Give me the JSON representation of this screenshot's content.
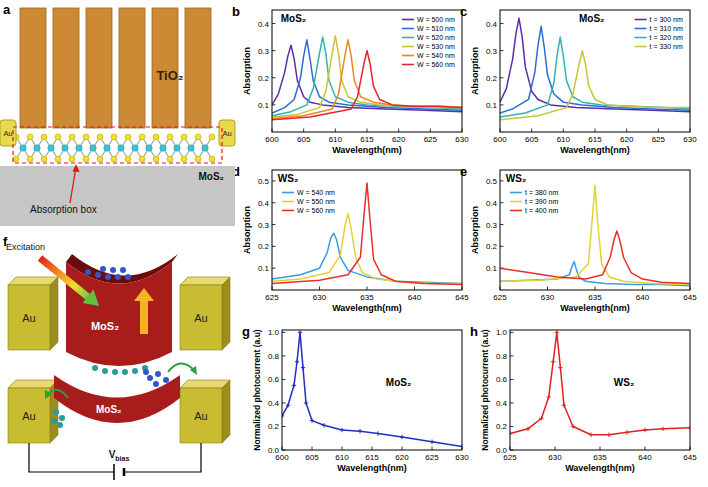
{
  "chart_data": [
    {
      "panel": "b",
      "type": "line",
      "title": "MoS₂",
      "x_label": "Wavelength(nm)",
      "y_label": "Absorption",
      "xlim": [
        600,
        630
      ],
      "xticks": [
        600,
        605,
        610,
        615,
        620,
        625,
        630
      ],
      "ylim": [
        0,
        0.45
      ],
      "yticks": [
        0.1,
        0.2,
        0.3,
        0.4
      ],
      "legend": "upper right",
      "series": [
        {
          "name": "W = 500 nm",
          "color": "#5b2ea6",
          "x": [
            600,
            601,
            602,
            602.5,
            603,
            603.5,
            604,
            605,
            606,
            608,
            612,
            618,
            624,
            630
          ],
          "values": [
            0.1,
            0.14,
            0.22,
            0.28,
            0.32,
            0.27,
            0.19,
            0.13,
            0.11,
            0.1,
            0.09,
            0.085,
            0.08,
            0.075
          ]
        },
        {
          "name": "W = 510 nm",
          "color": "#2b6cd6",
          "x": [
            600,
            602,
            603.5,
            604.5,
            605,
            605.5,
            606,
            606.5,
            607.5,
            609,
            612,
            618,
            624,
            630
          ],
          "values": [
            0.07,
            0.09,
            0.12,
            0.2,
            0.28,
            0.34,
            0.27,
            0.19,
            0.13,
            0.11,
            0.1,
            0.09,
            0.085,
            0.08
          ]
        },
        {
          "name": "W = 520 nm",
          "color": "#2fb4b0",
          "x": [
            600,
            603,
            605.5,
            606.5,
            607.5,
            608,
            608.5,
            609,
            610,
            612,
            615,
            620,
            625,
            630
          ],
          "values": [
            0.06,
            0.075,
            0.1,
            0.16,
            0.29,
            0.35,
            0.29,
            0.19,
            0.13,
            0.11,
            0.1,
            0.095,
            0.09,
            0.085
          ]
        },
        {
          "name": "W = 530 nm",
          "color": "#c7c436",
          "x": [
            600,
            604,
            607.5,
            608.5,
            609.5,
            610,
            610.5,
            611,
            612,
            614,
            617,
            622,
            626,
            630
          ],
          "values": [
            0.055,
            0.065,
            0.09,
            0.15,
            0.29,
            0.355,
            0.29,
            0.19,
            0.13,
            0.11,
            0.1,
            0.095,
            0.09,
            0.09
          ]
        },
        {
          "name": "W = 540 nm",
          "color": "#f0851e",
          "x": [
            600,
            605,
            609.5,
            610.5,
            611.5,
            612,
            612.5,
            613,
            614,
            616,
            619,
            623,
            627,
            630
          ],
          "values": [
            0.05,
            0.06,
            0.085,
            0.14,
            0.28,
            0.34,
            0.28,
            0.19,
            0.13,
            0.11,
            0.1,
            0.095,
            0.095,
            0.09
          ]
        },
        {
          "name": "W = 560 nm",
          "color": "#e4262b",
          "x": [
            600,
            606,
            612.5,
            613.5,
            614.5,
            615,
            615.5,
            616,
            617,
            619,
            622,
            626,
            630
          ],
          "values": [
            0.045,
            0.055,
            0.085,
            0.13,
            0.25,
            0.3,
            0.25,
            0.17,
            0.12,
            0.1,
            0.095,
            0.095,
            0.09
          ]
        }
      ]
    },
    {
      "panel": "c",
      "type": "line",
      "title": "MoS₂",
      "x_label": "Wavelength(nm)",
      "y_label": "Absorption",
      "xlim": [
        600,
        630
      ],
      "xticks": [
        600,
        605,
        610,
        615,
        620,
        625,
        630
      ],
      "ylim": [
        0,
        0.45
      ],
      "yticks": [
        0.1,
        0.2,
        0.3,
        0.4
      ],
      "legend": "upper right",
      "series": [
        {
          "name": "t = 300 nm",
          "color": "#5b2ea6",
          "x": [
            600,
            601,
            602,
            602.5,
            603,
            603.5,
            604,
            605,
            606,
            608,
            612,
            618,
            624,
            630
          ],
          "values": [
            0.11,
            0.16,
            0.27,
            0.36,
            0.42,
            0.35,
            0.24,
            0.15,
            0.12,
            0.1,
            0.09,
            0.085,
            0.08,
            0.075
          ]
        },
        {
          "name": "t = 310 nm",
          "color": "#2b6cd6",
          "x": [
            600,
            602,
            604.5,
            605.5,
            606,
            606.5,
            607,
            607.5,
            608.5,
            610,
            613,
            618,
            624,
            630
          ],
          "values": [
            0.07,
            0.085,
            0.12,
            0.22,
            0.32,
            0.39,
            0.31,
            0.21,
            0.14,
            0.11,
            0.1,
            0.09,
            0.085,
            0.08
          ]
        },
        {
          "name": "t = 320 nm",
          "color": "#2fb4b0",
          "x": [
            600,
            604,
            607.5,
            608.5,
            609,
            609.5,
            610,
            610.5,
            611.5,
            613,
            616,
            621,
            626,
            630
          ],
          "values": [
            0.055,
            0.07,
            0.1,
            0.18,
            0.28,
            0.35,
            0.28,
            0.19,
            0.13,
            0.11,
            0.1,
            0.095,
            0.09,
            0.085
          ]
        },
        {
          "name": "t = 330 nm",
          "color": "#c7c436",
          "x": [
            600,
            606,
            610.5,
            611.5,
            612.5,
            613,
            613.5,
            614,
            615,
            617,
            620,
            625,
            630
          ],
          "values": [
            0.045,
            0.06,
            0.09,
            0.14,
            0.25,
            0.3,
            0.25,
            0.17,
            0.12,
            0.1,
            0.095,
            0.09,
            0.09
          ]
        }
      ]
    },
    {
      "panel": "d",
      "type": "line",
      "title": "WS₂",
      "x_label": "Wavelength(nm)",
      "y_label": "Absorption",
      "xlim": [
        625,
        645
      ],
      "xticks": [
        625,
        630,
        635,
        640,
        645
      ],
      "ylim": [
        0,
        0.55
      ],
      "yticks": [
        0.1,
        0.2,
        0.3,
        0.4,
        0.5
      ],
      "legend": "upper left",
      "series": [
        {
          "name": "W = 540 nm",
          "color": "#3a9ae8",
          "x": [
            625,
            628,
            630,
            630.8,
            631.2,
            631.5,
            631.8,
            632.2,
            633,
            635,
            638,
            641,
            645
          ],
          "values": [
            0.05,
            0.07,
            0.1,
            0.17,
            0.24,
            0.26,
            0.23,
            0.15,
            0.09,
            0.06,
            0.04,
            0.035,
            0.03
          ]
        },
        {
          "name": "W = 550 nm",
          "color": "#e2d232",
          "x": [
            625,
            628,
            631,
            632.2,
            632.7,
            633,
            633.3,
            633.8,
            634.5,
            636,
            639,
            642,
            645
          ],
          "values": [
            0.04,
            0.05,
            0.08,
            0.16,
            0.3,
            0.35,
            0.29,
            0.15,
            0.08,
            0.05,
            0.035,
            0.03,
            0.03
          ]
        },
        {
          "name": "W = 560 nm",
          "color": "#e8302a",
          "x": [
            625,
            630,
            633,
            634.3,
            634.7,
            635,
            635.3,
            635.7,
            636.5,
            638,
            641,
            645
          ],
          "values": [
            0.03,
            0.045,
            0.07,
            0.15,
            0.35,
            0.49,
            0.33,
            0.14,
            0.07,
            0.04,
            0.03,
            0.025
          ]
        }
      ]
    },
    {
      "panel": "e",
      "type": "line",
      "title": "WS₂",
      "x_label": "Wavelength(nm)",
      "y_label": "Absorption",
      "xlim": [
        625,
        645
      ],
      "xticks": [
        625,
        630,
        635,
        640,
        645
      ],
      "ylim": [
        0,
        0.55
      ],
      "yticks": [
        0.1,
        0.2,
        0.3,
        0.4,
        0.5
      ],
      "legend": "upper left",
      "series": [
        {
          "name": "t = 380 nm",
          "color": "#3a9ae8",
          "x": [
            625,
            628,
            631,
            632.3,
            632.6,
            632.8,
            633,
            633.3,
            634,
            636,
            639,
            642,
            645
          ],
          "values": [
            0.04,
            0.045,
            0.05,
            0.07,
            0.11,
            0.13,
            0.1,
            0.06,
            0.04,
            0.03,
            0.025,
            0.025,
            0.02
          ]
        },
        {
          "name": "t = 390 nm",
          "color": "#e2d232",
          "x": [
            625,
            629,
            633,
            634.3,
            634.7,
            635,
            635.3,
            635.7,
            636.5,
            638,
            641,
            645
          ],
          "values": [
            0.04,
            0.045,
            0.06,
            0.12,
            0.32,
            0.48,
            0.3,
            0.12,
            0.06,
            0.04,
            0.03,
            0.025
          ]
        },
        {
          "name": "t = 400 nm",
          "color": "#e8302a",
          "x": [
            625,
            628,
            631,
            634,
            635.8,
            636.6,
            637,
            637.3,
            637.6,
            638,
            638.8,
            640,
            642,
            645
          ],
          "values": [
            0.1,
            0.08,
            0.06,
            0.05,
            0.07,
            0.15,
            0.23,
            0.27,
            0.23,
            0.15,
            0.08,
            0.05,
            0.035,
            0.03
          ]
        }
      ]
    },
    {
      "panel": "g",
      "type": "line",
      "title": "MoS₂",
      "x_label": "Wavelength(nm)",
      "y_label": "Normalized photocurrent (a.u)",
      "xlim": [
        600,
        630
      ],
      "xticks": [
        600,
        605,
        610,
        615,
        620,
        625,
        630
      ],
      "ylim": [
        0,
        1.02
      ],
      "yticks": [
        {
          "value": 0,
          "label": "0.0"
        },
        0.2,
        0.4,
        0.6,
        0.8,
        {
          "value": 1,
          "label": "1.0"
        }
      ],
      "series": [
        {
          "color": "#1f2fc0",
          "marker": "plus",
          "x": [
            600,
            601,
            602,
            602.5,
            603,
            603.5,
            604,
            605,
            607,
            610,
            613,
            616,
            620,
            625,
            630
          ],
          "values": [
            0.29,
            0.38,
            0.55,
            0.75,
            1.0,
            0.7,
            0.4,
            0.25,
            0.21,
            0.17,
            0.16,
            0.14,
            0.11,
            0.07,
            0.03
          ]
        }
      ]
    },
    {
      "panel": "h",
      "type": "line",
      "title": "WS₂",
      "x_label": "Wavelength(nm)",
      "y_label": "Normalized photocurrent (a.u)",
      "xlim": [
        625,
        645
      ],
      "xticks": [
        625,
        630,
        635,
        640,
        645
      ],
      "ylim": [
        0,
        1.02
      ],
      "yticks": [
        {
          "value": 0,
          "label": "0.0"
        },
        0.2,
        0.4,
        0.6,
        0.8,
        {
          "value": 1,
          "label": "1.0"
        }
      ],
      "series": [
        {
          "color": "#e02020",
          "marker": "plus",
          "x": [
            625,
            627,
            628.5,
            629.3,
            629.8,
            630.2,
            630.6,
            631,
            632,
            634,
            636,
            638,
            640,
            642,
            645
          ],
          "values": [
            0.14,
            0.18,
            0.27,
            0.45,
            0.75,
            1.0,
            0.7,
            0.38,
            0.2,
            0.13,
            0.13,
            0.15,
            0.17,
            0.18,
            0.19
          ]
        }
      ]
    }
  ],
  "diagrams": {
    "a": {
      "panel": "a",
      "tio2": "TiO₂",
      "au": [
        "Au",
        "Au"
      ],
      "mos2": "MoS₂",
      "absorption_box": "Absorption box"
    },
    "f": {
      "panel": "f",
      "excitation": "Excitation",
      "mos2": [
        "MoS₂",
        "MoS₂"
      ],
      "au": [
        "Au",
        "Au",
        "Au",
        "Au"
      ],
      "bias": "Vbias"
    }
  }
}
